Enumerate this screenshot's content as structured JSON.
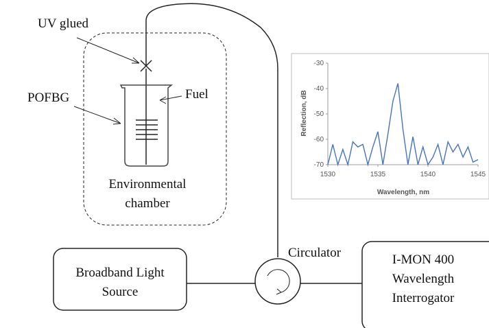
{
  "labels": {
    "uv_glued": "UV glued",
    "pofbg": "POFBG",
    "fuel": "Fuel",
    "chamber": [
      "Environmental",
      "chamber"
    ],
    "circulator": "Circulator"
  },
  "boxes": {
    "source": [
      "Broadband Light",
      "Source"
    ],
    "interrogator": [
      "I-MON 400",
      "Wavelength",
      "Interrogator"
    ]
  },
  "inset": {
    "type": "line",
    "y_label": "Reflection, dB",
    "x_label": "Wavelength, nm",
    "color": "#4472c4",
    "x": [
      1530,
      1530.5,
      1531,
      1531.5,
      1532,
      1532.5,
      1533,
      1533.5,
      1534,
      1534.5,
      1535,
      1535.5,
      1536,
      1536.5,
      1537,
      1537.5,
      1538,
      1538.5,
      1539,
      1539.5,
      1540,
      1540.5,
      1541,
      1541.5,
      1542,
      1542.5,
      1543,
      1543.5,
      1544,
      1544.5,
      1545
    ],
    "values": [
      -70,
      -62,
      -70,
      -64,
      -70,
      -61,
      -63,
      -62,
      -70,
      -63,
      -57,
      -70,
      -58,
      -45,
      -38,
      -56,
      -70,
      -59,
      -70,
      -63,
      -70,
      -67,
      -62,
      -70,
      -61,
      -65,
      -62,
      -67,
      -63,
      -69,
      -68
    ],
    "xlim": [
      1530,
      1545
    ],
    "ylim": [
      -70,
      -30
    ],
    "xticks": [
      1530,
      1535,
      1540,
      1545
    ],
    "yticks": [
      -30,
      -40,
      -50,
      -60,
      -70
    ]
  }
}
